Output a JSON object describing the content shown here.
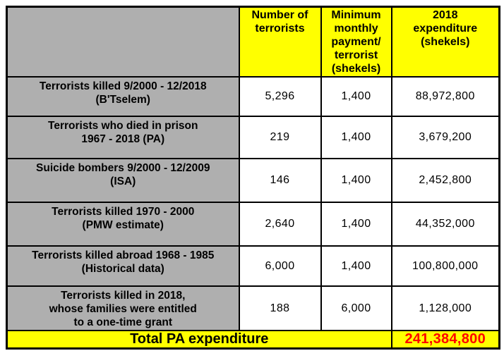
{
  "colors": {
    "header_bg": "#FFFF00",
    "row_label_bg": "#AFAFAF",
    "cell_bg": "#FFFFFF",
    "border": "#000000",
    "text": "#000000",
    "total_value_text": "#FF0000"
  },
  "table": {
    "header": {
      "corner": "",
      "number_of_terrorists": "Number of\nterrorists",
      "minimum_monthly_payment": "Minimum\nmonthly\npayment/\nterrorist\n(shekels)",
      "expenditure_2018": "2018\nexpenditure\n(shekels)"
    },
    "rows": [
      {
        "label": "Terrorists killed 9/2000 - 12/2018\n(B'Tselem)",
        "number": "5,296",
        "payment": "1,400",
        "expenditure": "88,972,800"
      },
      {
        "label": "Terrorists who died in prison\n1967 - 2018 (PA)",
        "number": "219",
        "payment": "1,400",
        "expenditure": "3,679,200"
      },
      {
        "label": "Suicide bombers 9/2000 - 12/2009\n(ISA)",
        "number": "146",
        "payment": "1,400",
        "expenditure": "2,452,800"
      },
      {
        "label": "Terrorists killed 1970 - 2000\n(PMW estimate)",
        "number": "2,640",
        "payment": "1,400",
        "expenditure": "44,352,000"
      },
      {
        "label": "Terrorists killed abroad 1968 - 1985\n(Historical data)",
        "number": "6,000",
        "payment": "1,400",
        "expenditure": "100,800,000"
      },
      {
        "label": "Terrorists killed in 2018,\nwhose families were entitled\nto a one-time grant",
        "number": "188",
        "payment": "6,000",
        "expenditure": "1,128,000"
      }
    ],
    "total": {
      "label": "Total PA expenditure",
      "value": "241,384,800"
    }
  },
  "chart_data": {
    "type": "table",
    "columns": [
      "",
      "Number of terrorists",
      "Minimum monthly payment/terrorist (shekels)",
      "2018 expenditure (shekels)"
    ],
    "rows": [
      [
        "Terrorists killed 9/2000 - 12/2018 (B'Tselem)",
        5296,
        1400,
        88972800
      ],
      [
        "Terrorists who died in prison 1967 - 2018 (PA)",
        219,
        1400,
        3679200
      ],
      [
        "Suicide bombers 9/2000 - 12/2009 (ISA)",
        146,
        1400,
        2452800
      ],
      [
        "Terrorists killed 1970 - 2000 (PMW estimate)",
        2640,
        1400,
        44352000
      ],
      [
        "Terrorists killed abroad 1968 - 1985 (Historical data)",
        6000,
        1400,
        100800000
      ],
      [
        "Terrorists killed in 2018, whose families were entitled to a one-time grant",
        188,
        6000,
        1128000
      ]
    ],
    "total_row": [
      "Total PA expenditure",
      null,
      null,
      241384800
    ]
  }
}
